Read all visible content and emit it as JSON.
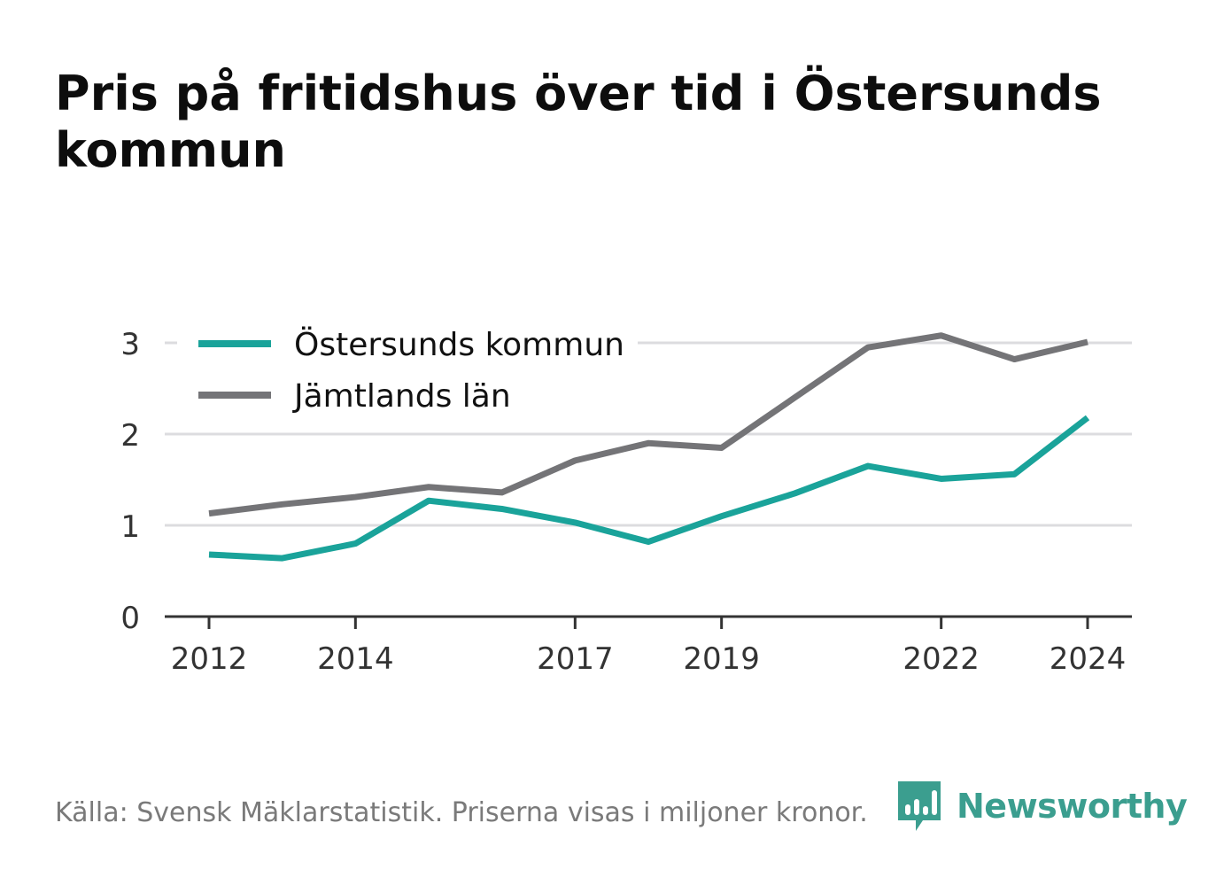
{
  "chart_data": {
    "type": "line",
    "title": "Pris på fritidshus över tid i Östersunds kommun",
    "x": [
      2012,
      2013,
      2014,
      2015,
      2016,
      2017,
      2018,
      2019,
      2020,
      2021,
      2022,
      2023,
      2024
    ],
    "xticks": [
      2012,
      2014,
      2017,
      2019,
      2022,
      2024
    ],
    "yticks": [
      0,
      1,
      2,
      3
    ],
    "ylim": [
      0,
      3.1
    ],
    "grid": true,
    "legend_position": "top-left",
    "series": [
      {
        "name": "Östersunds kommun",
        "color": "#1aa39a",
        "values": [
          0.68,
          0.64,
          0.8,
          1.27,
          1.18,
          1.03,
          0.82,
          1.1,
          1.35,
          1.65,
          1.51,
          1.56,
          2.18
        ]
      },
      {
        "name": "Jämtlands län",
        "color": "#747477",
        "values": [
          1.13,
          1.23,
          1.31,
          1.42,
          1.36,
          1.71,
          1.9,
          1.85,
          2.4,
          2.95,
          3.08,
          2.82,
          3.01
        ]
      }
    ]
  },
  "footer": {
    "source": "Källa: Svensk Mäklarstatistik. Priserna visas i miljoner kronor."
  },
  "logo": {
    "text": "Newsworthy",
    "color": "#3b9e8f",
    "icon": "bar-chart-speech-bubble-icon"
  }
}
